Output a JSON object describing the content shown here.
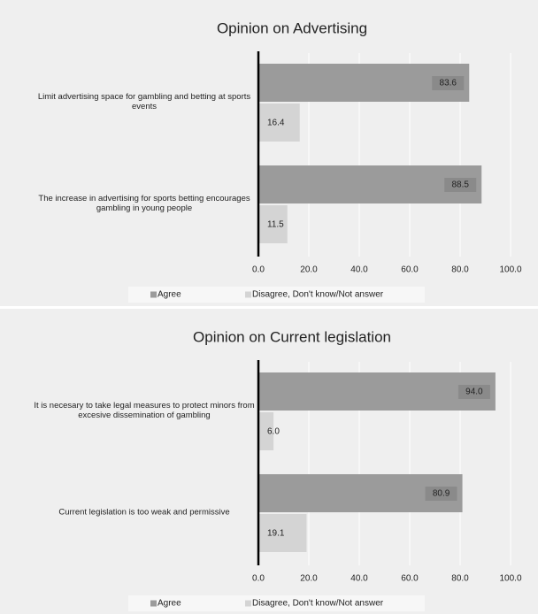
{
  "chart_data": [
    {
      "type": "bar",
      "orientation": "horizontal",
      "title": "Opinion on Advertising",
      "categories": [
        "Limit advertising space for gambling and betting at sports events",
        "The increase in advertising for sports betting encourages gambling in young people"
      ],
      "series": [
        {
          "name": "Agree",
          "color": "#9b9b9b",
          "values": [
            83.6,
            88.5
          ],
          "value_labels": [
            "83.6",
            "88.5"
          ]
        },
        {
          "name": "Disagree, Don't know/Not answer",
          "color": "#d4d4d4",
          "values": [
            16.4,
            11.5
          ],
          "value_labels": [
            "16.4",
            "11.5"
          ]
        }
      ],
      "xlim": [
        0,
        100
      ],
      "xticks": [
        {
          "value": 0,
          "label": "0.0"
        },
        {
          "value": 20,
          "label": "20.0"
        },
        {
          "value": 40,
          "label": "40.0"
        },
        {
          "value": 60,
          "label": "60.0"
        },
        {
          "value": 80,
          "label": "80.0"
        },
        {
          "value": 100,
          "label": "100.0"
        }
      ],
      "grid": true,
      "legend": "bottom"
    },
    {
      "type": "bar",
      "orientation": "horizontal",
      "title": "Opinion on Current legislation",
      "categories": [
        "It is necesary to take legal measures to protect minors from excesive dissemination of gambling",
        "Current legislation is too weak and permissive"
      ],
      "series": [
        {
          "name": "Agree",
          "color": "#9b9b9b",
          "values": [
            94.0,
            80.9
          ],
          "value_labels": [
            "94.0",
            "80.9"
          ]
        },
        {
          "name": "Disagree, Don't know/Not answer",
          "color": "#d4d4d4",
          "values": [
            6.0,
            19.1
          ],
          "value_labels": [
            "6.0",
            "19.1"
          ]
        }
      ],
      "xlim": [
        0,
        100
      ],
      "xticks": [
        {
          "value": 0,
          "label": "0.0"
        },
        {
          "value": 20,
          "label": "20.0"
        },
        {
          "value": 40,
          "label": "40.0"
        },
        {
          "value": 60,
          "label": "60.0"
        },
        {
          "value": 80,
          "label": "80.0"
        },
        {
          "value": 100,
          "label": "100.0"
        }
      ],
      "grid": true,
      "legend": "bottom"
    }
  ]
}
